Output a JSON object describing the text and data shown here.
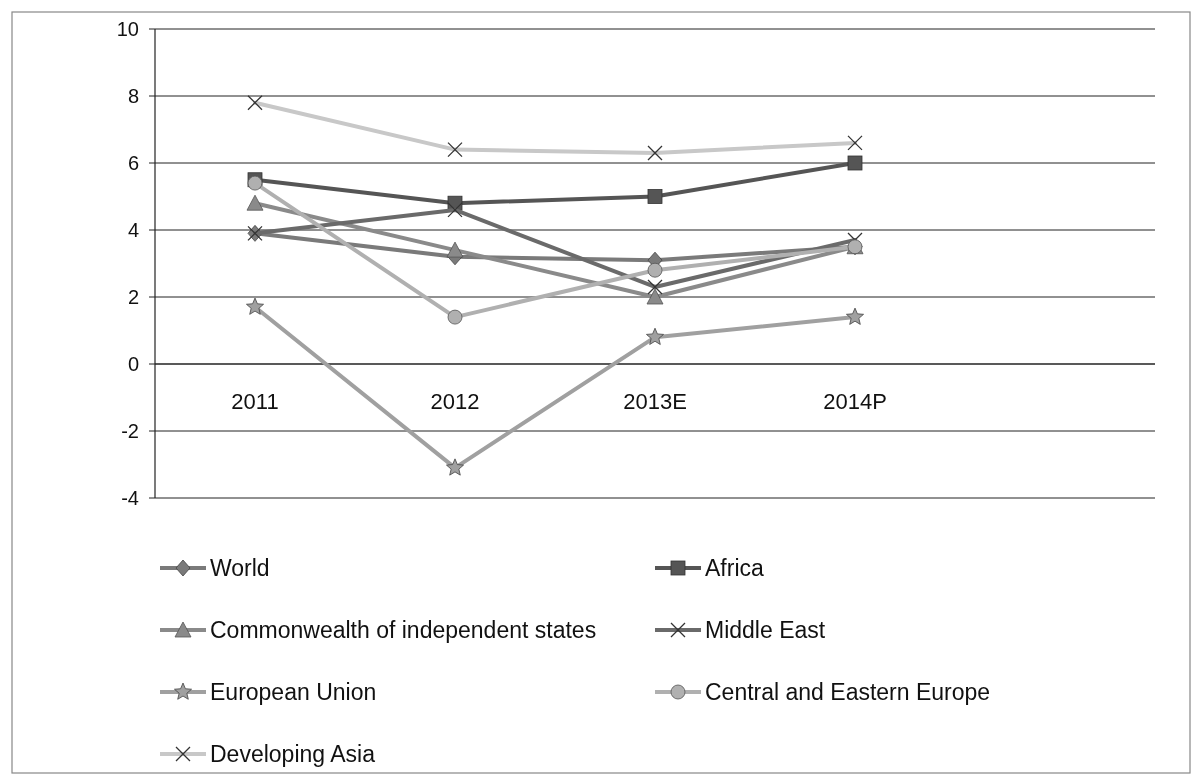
{
  "chart_data": {
    "type": "line",
    "categories": [
      "2011",
      "2012",
      "2013E",
      "2014P",
      null
    ],
    "ylim": [
      -4,
      10
    ],
    "yticks": [
      -4,
      -2,
      0,
      2,
      4,
      6,
      8,
      10
    ],
    "grid": "y",
    "legend": "bottom",
    "line_style": "solid",
    "series": [
      {
        "name": "World",
        "color": "#7a7a7a",
        "marker": "diamond",
        "values": [
          3.9,
          3.2,
          3.1,
          3.5,
          null
        ]
      },
      {
        "name": "Africa",
        "color": "#555555",
        "marker": "square",
        "values": [
          5.5,
          4.8,
          5.0,
          6.0,
          null
        ]
      },
      {
        "name": "Commonwealth of independent states",
        "color": "#8a8a8a",
        "marker": "triangle",
        "values": [
          4.8,
          3.4,
          2.0,
          3.5,
          null
        ]
      },
      {
        "name": "Middle East",
        "color": "#6a6a6a",
        "marker": "cross",
        "values": [
          3.9,
          4.6,
          2.3,
          3.7,
          null
        ]
      },
      {
        "name": "European Union",
        "color": "#a0a0a0",
        "marker": "star",
        "values": [
          1.7,
          -3.1,
          0.8,
          1.4,
          null
        ]
      },
      {
        "name": "Central and Eastern Europe",
        "color": "#b0b0b0",
        "marker": "circle",
        "values": [
          5.4,
          1.4,
          2.8,
          3.5,
          null
        ]
      },
      {
        "name": "Developing Asia",
        "color": "#c8c8c8",
        "marker": "cross",
        "values": [
          7.8,
          6.4,
          6.3,
          6.6,
          null
        ]
      }
    ]
  }
}
